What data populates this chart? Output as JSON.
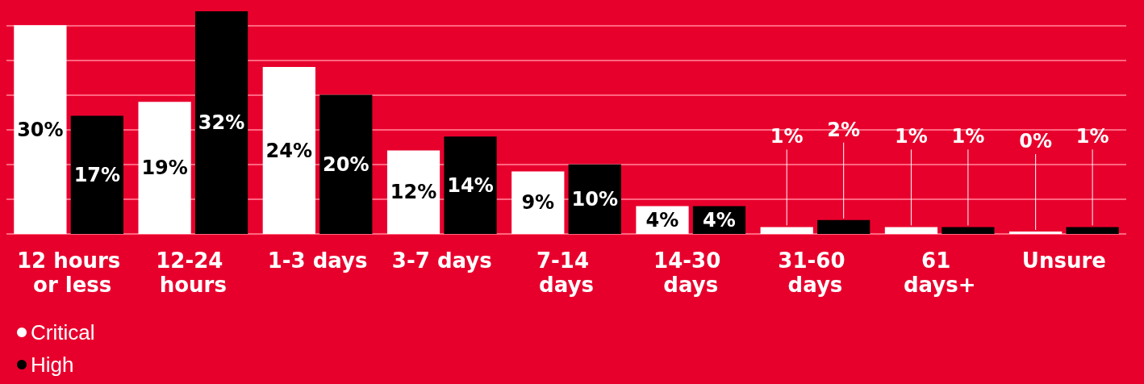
{
  "chart_data": {
    "type": "bar",
    "categories": [
      "12 hours or less",
      "12-24 hours",
      "1-3 days",
      "3-7 days",
      "7-14 days",
      "14-30 days",
      "31-60 days",
      "61 days+",
      "Unsure"
    ],
    "series": [
      {
        "name": "Critical",
        "color": "#ffffff",
        "values": [
          30,
          19,
          24,
          12,
          9,
          4,
          1,
          1,
          0
        ],
        "value_labels": [
          "30%",
          "19%",
          "24%",
          "12%",
          "9%",
          "4%",
          "1%",
          "1%",
          "0%"
        ]
      },
      {
        "name": "High",
        "color": "#000000",
        "values": [
          17,
          32,
          20,
          14,
          10,
          4,
          2,
          1,
          1
        ],
        "value_labels": [
          "17%",
          "32%",
          "20%",
          "14%",
          "10%",
          "4%",
          "2%",
          "1%",
          "1%"
        ]
      }
    ],
    "ylim": [
      0,
      32
    ],
    "yticks": [
      {
        "value": 0,
        "label": null
      },
      {
        "value": 5,
        "label": null
      },
      {
        "value": 10,
        "label": null
      },
      {
        "value": 15,
        "label": null
      },
      {
        "value": 20,
        "label": null
      },
      {
        "value": 25,
        "label": null
      },
      {
        "value": 30,
        "label": null
      }
    ],
    "tick_labels": "x",
    "grid": "y",
    "legend": "bottom left"
  }
}
